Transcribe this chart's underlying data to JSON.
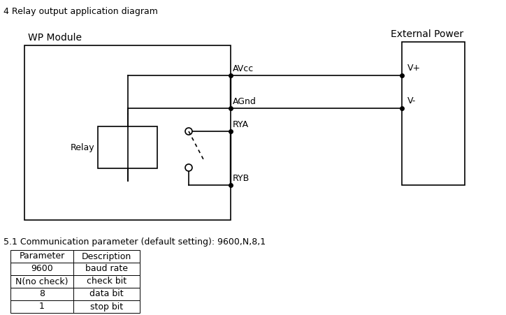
{
  "title": "4 Relay output application diagram",
  "bg_color": "#ffffff",
  "text_color": "#000000",
  "line_color": "#000000",
  "wp_module_label": "WP Module",
  "external_power_label": "External Power",
  "relay_label": "Relay",
  "avcc_label": "AVcc",
  "agnd_label": "AGnd",
  "rya_label": "RYA",
  "ryb_label": "RYB",
  "vplus_label": "V+",
  "vminus_label": "V-",
  "comm_title": "5.1 Communication parameter (default setting): 9600,N,8,1",
  "table_headers": [
    "Parameter",
    "Description"
  ],
  "table_rows": [
    [
      "9600",
      "baud rate"
    ],
    [
      "N(no check)",
      "check bit"
    ],
    [
      "8",
      "data bit"
    ],
    [
      "1",
      "stop bit"
    ]
  ],
  "font_size_title": 9,
  "font_size_labels": 9,
  "font_size_comm": 9,
  "font_size_table": 9
}
